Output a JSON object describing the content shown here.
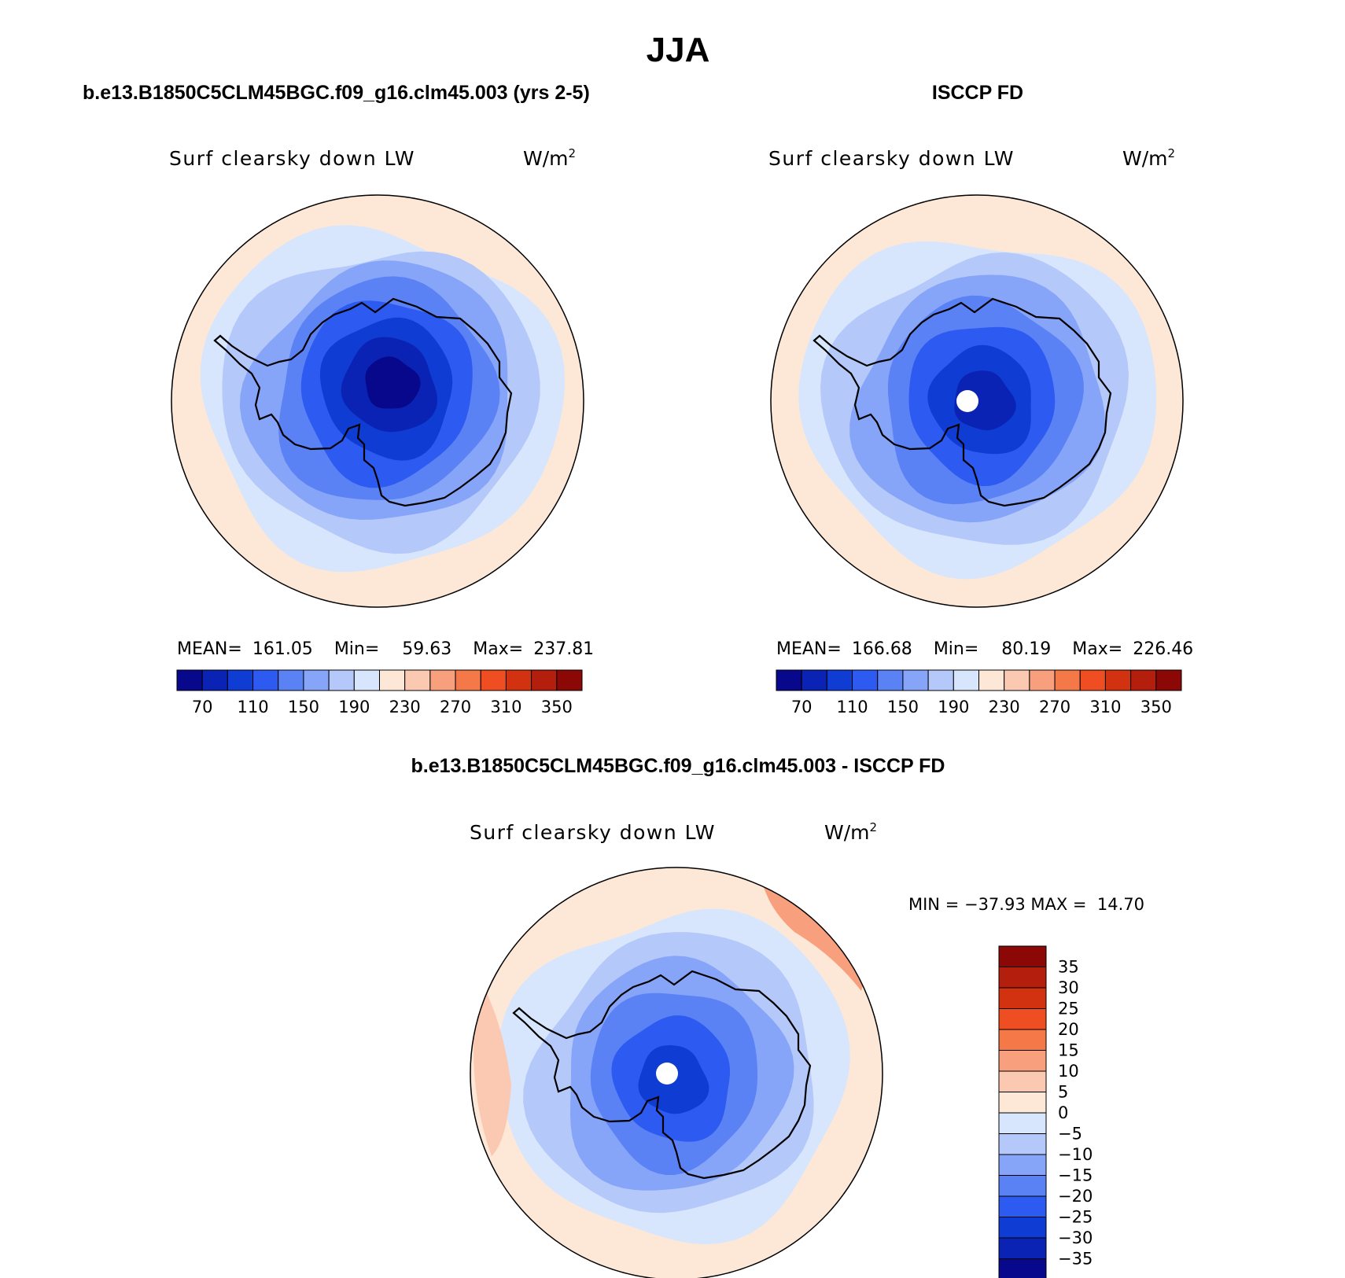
{
  "main_title": "JJA",
  "panels": [
    {
      "id": "model",
      "case_title": "b.e13.B1850C5CLM45BGC.f09_g16.clm45.003 (yrs 2-5)",
      "variable": "Surf clearsky down LW",
      "units": "W/m",
      "units_exp": "2",
      "mean_label": "MEAN=",
      "mean": "161.05",
      "min_label": "Min=",
      "min": "59.63",
      "max_label": "Max=",
      "max": "237.81",
      "pole_hole": false
    },
    {
      "id": "obs",
      "case_title": "ISCCP FD",
      "variable": "Surf clearsky down LW",
      "units": "W/m",
      "units_exp": "2",
      "mean_label": "MEAN=",
      "mean": "166.68",
      "min_label": "Min=",
      "min": "80.19",
      "max_label": "Max=",
      "max": "226.46",
      "pole_hole": true
    }
  ],
  "diff_panel": {
    "case_title": "b.e13.B1850C5CLM45BGC.f09_g16.clm45.003 - ISCCP FD",
    "variable": "Surf clearsky down LW",
    "units": "W/m",
    "units_exp": "2",
    "minmax_text": "MIN = −37.93 MAX =  14.70",
    "pole_hole": true
  },
  "abs_colorbar": {
    "labels": [
      "70",
      "110",
      "150",
      "190",
      "230",
      "270",
      "310",
      "350"
    ],
    "colors": [
      "#08088c",
      "#0a23b4",
      "#0f3cd2",
      "#2d5af0",
      "#5a82f5",
      "#87a5f8",
      "#b4c8fa",
      "#d7e6fc",
      "#fde8d8",
      "#fbc8b2",
      "#f8a07e",
      "#f57849",
      "#ee4e21",
      "#d2320f",
      "#b41e0c",
      "#8c0806"
    ]
  },
  "diff_colorbar": {
    "labels": [
      "35",
      "30",
      "25",
      "20",
      "15",
      "10",
      "5",
      "0",
      "−5",
      "−10",
      "−15",
      "−20",
      "−25",
      "−30",
      "−35"
    ],
    "colors_top_to_bottom": [
      "#8c0806",
      "#b41e0c",
      "#d2320f",
      "#ee4e21",
      "#f57849",
      "#f8a07e",
      "#fbc8b2",
      "#fde8d8",
      "#d7e6fc",
      "#b4c8fa",
      "#87a5f8",
      "#5a82f5",
      "#2d5af0",
      "#0f3cd2",
      "#0a23b4",
      "#08088c"
    ]
  },
  "map_colors": {
    "model_rings": [
      "#fde8d8",
      "#d7e6fc",
      "#b4c8fa",
      "#87a5f8",
      "#5a82f5",
      "#2d5af0",
      "#0f3cd2",
      "#0a23b4",
      "#08088c"
    ],
    "obs_rings": [
      "#fde8d8",
      "#d7e6fc",
      "#b4c8fa",
      "#87a5f8",
      "#5a82f5",
      "#2d5af0",
      "#0f3cd2",
      "#0a23b4"
    ],
    "diff_rings": [
      "#fde8d8",
      "#d7e6fc",
      "#b4c8fa",
      "#87a5f8",
      "#5a82f5",
      "#2d5af0",
      "#0f3cd2"
    ],
    "diff_warm_patch": "#f8a07e",
    "diff_warm_light": "#fbc8b2",
    "coastline": "#000000"
  }
}
